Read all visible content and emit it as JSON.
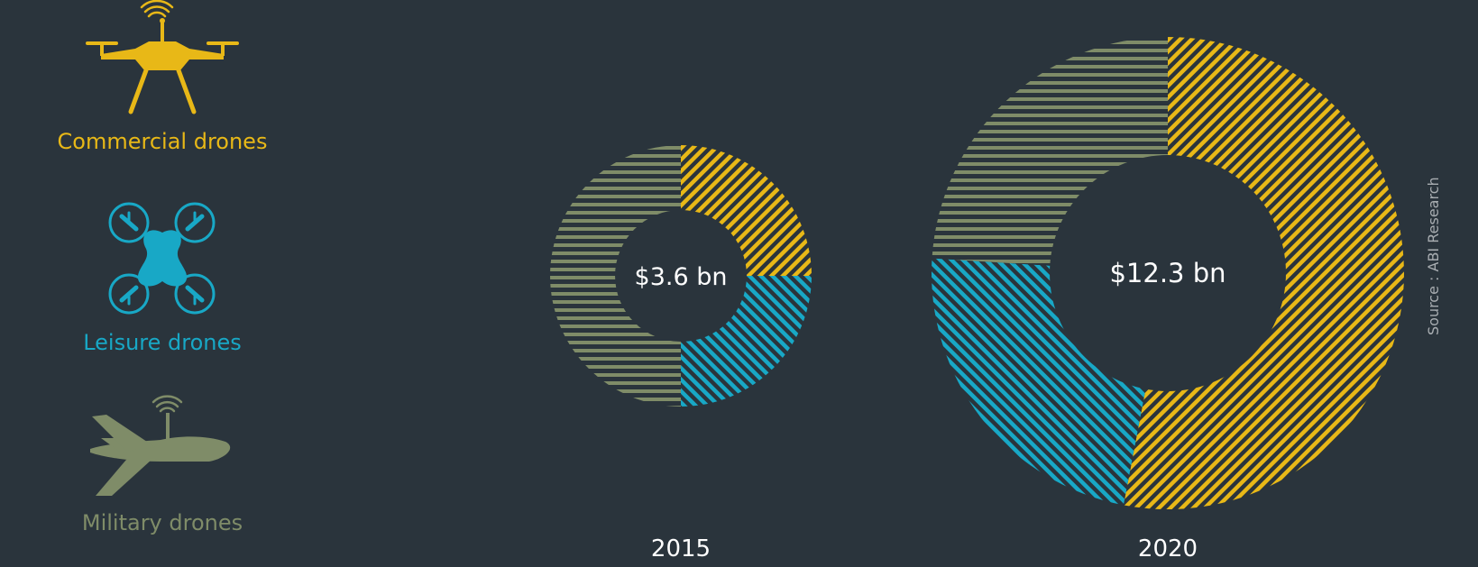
{
  "colors": {
    "background": "#2a343c",
    "commercial": "#e8b817",
    "leisure": "#18a8c6",
    "military": "#7f8c68",
    "text": "#ffffff",
    "source": "#a8adb1"
  },
  "legend": [
    {
      "label": "Commercial drones",
      "icon": "commercial-drone-icon",
      "color": "#e8b817"
    },
    {
      "label": "Leisure drones",
      "icon": "leisure-quadcopter-icon",
      "color": "#18a8c6"
    },
    {
      "label": "Military drones",
      "icon": "military-drone-icon",
      "color": "#7f8c68"
    }
  ],
  "source": "Source : ABI Research",
  "chart_data": {
    "type": "pie",
    "variant": "donut",
    "series": [
      {
        "year": "2015",
        "total_label": "$3.6 bn",
        "total": 3.6,
        "shares": {
          "commercial": 0.25,
          "leisure": 0.25,
          "military": 0.5
        }
      },
      {
        "year": "2020",
        "total_label": "$12.3 bn",
        "total": 12.3,
        "shares": {
          "commercial": 0.53,
          "leisure": 0.23,
          "military": 0.24
        }
      }
    ],
    "categories": [
      "Commercial drones",
      "Leisure drones",
      "Military drones"
    ]
  }
}
